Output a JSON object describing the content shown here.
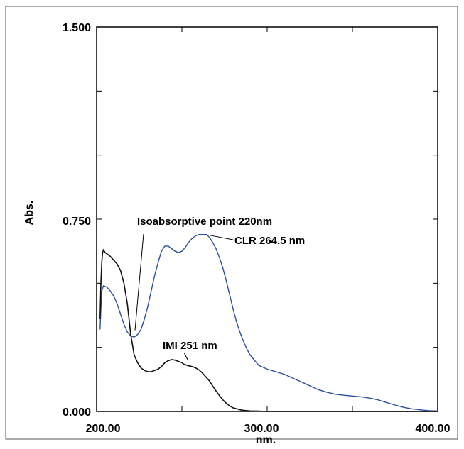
{
  "chart_data": {
    "type": "line",
    "title": "",
    "xlabel": "nm.",
    "ylabel": "Abs.",
    "xlim": [
      200.0,
      400.0
    ],
    "ylim": [
      0.0,
      1.5
    ],
    "x_ticks": [
      "200.00",
      "300.00",
      "400.00"
    ],
    "y_ticks": [
      "0.000",
      "0.750",
      "1.500"
    ],
    "grid": false,
    "colors": {
      "CLR": "#2b4ea0",
      "IMI": "#111111",
      "axis": "#000000"
    },
    "series": [
      {
        "name": "CLR",
        "color": "#2b4ea0",
        "x": [
          202,
          202.5,
          203,
          204,
          206,
          208,
          210,
          212,
          214,
          216,
          218,
          220,
          222,
          224,
          226,
          228,
          230,
          232,
          234,
          236,
          238,
          240,
          242,
          244,
          246,
          248,
          250,
          252,
          254,
          256,
          258,
          260,
          262,
          264.5,
          266,
          268,
          270,
          272,
          274,
          276,
          278,
          280,
          282,
          284,
          286,
          288,
          290,
          295,
          300,
          305,
          310,
          315,
          320,
          325,
          330,
          335,
          340,
          345,
          350,
          355,
          360,
          365,
          370,
          375,
          380,
          385,
          390,
          395,
          400
        ],
        "y": [
          0.32,
          0.4,
          0.47,
          0.49,
          0.485,
          0.47,
          0.45,
          0.42,
          0.38,
          0.34,
          0.31,
          0.295,
          0.29,
          0.3,
          0.32,
          0.36,
          0.41,
          0.47,
          0.53,
          0.58,
          0.625,
          0.645,
          0.645,
          0.635,
          0.625,
          0.62,
          0.625,
          0.64,
          0.66,
          0.675,
          0.685,
          0.69,
          0.69,
          0.69,
          0.68,
          0.66,
          0.635,
          0.6,
          0.56,
          0.51,
          0.455,
          0.4,
          0.35,
          0.31,
          0.275,
          0.245,
          0.22,
          0.18,
          0.165,
          0.155,
          0.145,
          0.13,
          0.115,
          0.1,
          0.085,
          0.075,
          0.067,
          0.063,
          0.06,
          0.057,
          0.052,
          0.045,
          0.035,
          0.025,
          0.016,
          0.01,
          0.006,
          0.003,
          0.002
        ]
      },
      {
        "name": "IMI",
        "color": "#111111",
        "x": [
          202,
          202.5,
          203,
          203.5,
          204,
          205,
          206,
          208,
          210,
          212,
          214,
          216,
          218,
          220,
          222,
          224,
          226,
          228,
          230,
          232,
          234,
          236,
          238,
          240,
          242,
          244,
          246,
          248,
          250,
          251,
          252,
          254,
          256,
          258,
          260,
          262,
          264,
          266,
          268,
          270,
          272,
          274,
          276,
          278,
          280,
          285,
          290,
          295,
          300,
          305,
          310,
          315,
          320,
          325,
          330,
          340,
          350,
          360,
          380,
          400
        ],
        "y": [
          0.36,
          0.5,
          0.58,
          0.62,
          0.63,
          0.62,
          0.615,
          0.605,
          0.59,
          0.575,
          0.55,
          0.5,
          0.42,
          0.3,
          0.22,
          0.19,
          0.17,
          0.16,
          0.155,
          0.155,
          0.16,
          0.165,
          0.175,
          0.19,
          0.198,
          0.202,
          0.2,
          0.195,
          0.19,
          0.185,
          0.182,
          0.178,
          0.175,
          0.17,
          0.162,
          0.15,
          0.135,
          0.12,
          0.1,
          0.08,
          0.062,
          0.045,
          0.032,
          0.022,
          0.014,
          0.005,
          0.002,
          0.001,
          0.0,
          0.0,
          0.0,
          0.0,
          0.0,
          0.0,
          0.0,
          0.0,
          0.0,
          0.0,
          0.0,
          0.0
        ]
      }
    ],
    "annotations": [
      {
        "text": "Isoabsorptive point 220nm",
        "x": 220,
        "y": 0.3
      },
      {
        "text": "CLR 264.5 nm",
        "x": 264.5,
        "y": 0.69
      },
      {
        "text": "IMI 251 nm",
        "x": 251,
        "y": 0.19
      }
    ]
  }
}
